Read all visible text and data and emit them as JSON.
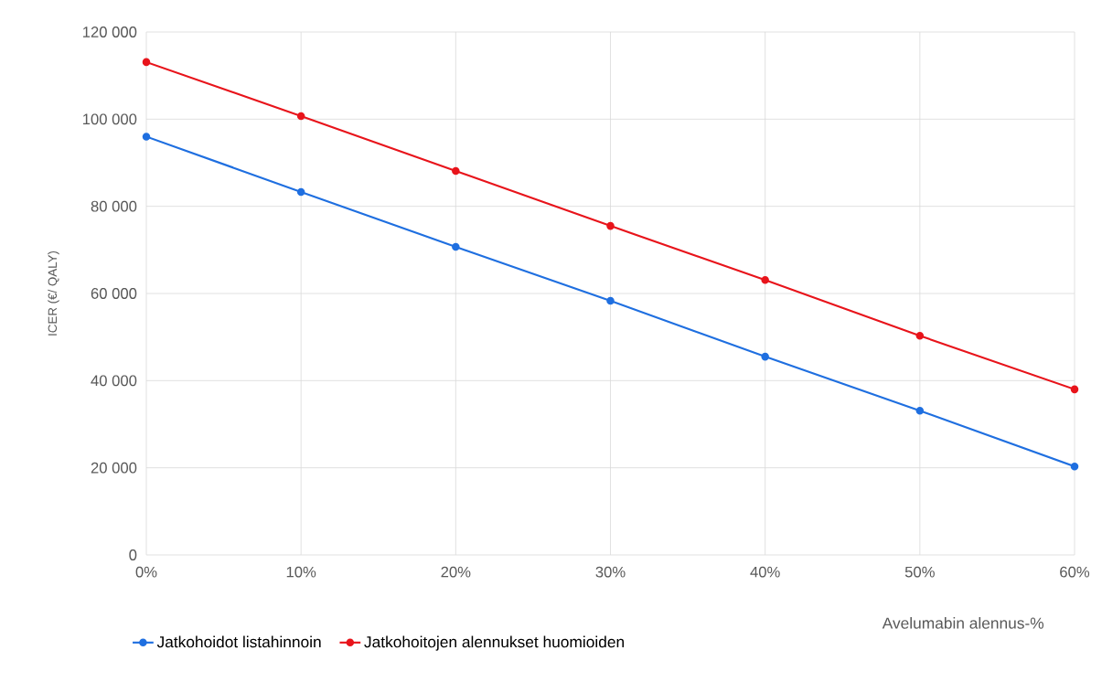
{
  "chart_data": {
    "type": "line",
    "xlabel": "Avelumabin alennus-%",
    "ylabel": "ICER (€/ QALY)",
    "x": [
      0,
      10,
      20,
      30,
      40,
      50,
      60
    ],
    "series": [
      {
        "name": "Jatkohoidot listahinnoin",
        "color": "#1f6fe0",
        "values": [
          96000,
          83300,
          70700,
          58300,
          45500,
          33100,
          20300
        ]
      },
      {
        "name": "Jatkohoitojen alennukset huomioiden",
        "color": "#e8141b",
        "values": [
          113100,
          100700,
          88100,
          75500,
          63100,
          50300,
          38000
        ]
      }
    ],
    "xlim": [
      0,
      60
    ],
    "xticks": [
      {
        "value": 0,
        "label": "0%"
      },
      {
        "value": 10,
        "label": "10%"
      },
      {
        "value": 20,
        "label": "20%"
      },
      {
        "value": 30,
        "label": "30%"
      },
      {
        "value": 40,
        "label": "40%"
      },
      {
        "value": 50,
        "label": "50%"
      },
      {
        "value": 60,
        "label": "60%"
      }
    ],
    "ylim": [
      0,
      120000
    ],
    "yticks": [
      0,
      {
        "value": 20000,
        "label": "20 000"
      },
      {
        "value": 40000,
        "label": "40 000"
      },
      {
        "value": 60000,
        "label": "60 000"
      },
      {
        "value": 80000,
        "label": "80 000"
      },
      {
        "value": 100000,
        "label": "100 000"
      },
      {
        "value": 120000,
        "label": "120 000"
      }
    ],
    "grid": true,
    "legend": "bottom left",
    "marker": "circle",
    "line_style": "solid"
  }
}
